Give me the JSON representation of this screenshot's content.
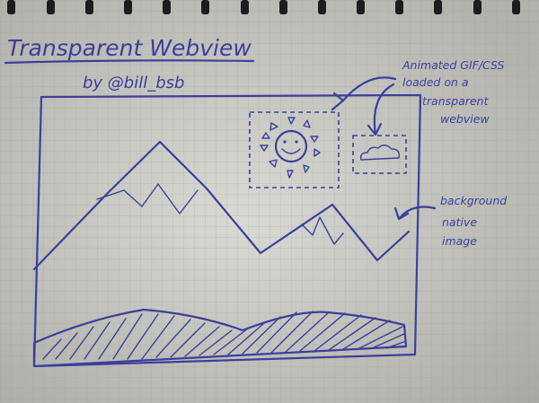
{
  "sketch": {
    "title": "Transparent Webview",
    "byline": "by @bill_bsb",
    "annotation_webview": [
      "Animated GIF/CSS",
      "loaded on a",
      "transparent",
      "webview"
    ],
    "annotation_background": [
      "background",
      "native",
      "image"
    ],
    "icons": [
      "sun-icon",
      "cloud-icon"
    ],
    "ink_color": "#3b3f9a",
    "paper_color": "#d6d6cf"
  }
}
